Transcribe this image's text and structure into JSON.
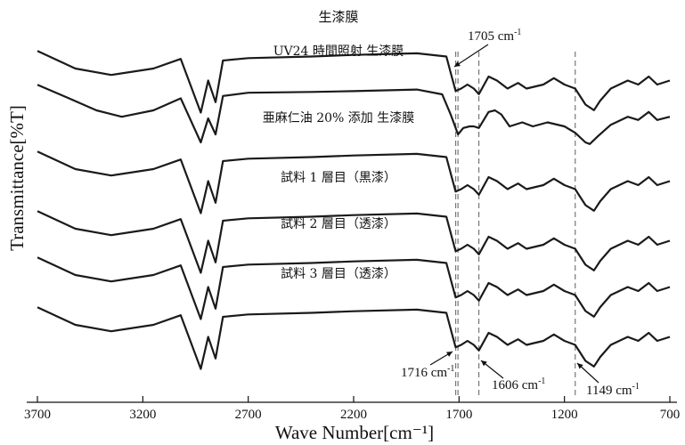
{
  "chart_data": {
    "type": "line",
    "xlabel": "Wave Number[cm⁻¹]",
    "ylabel": "Transmittance[%T]",
    "xlim": [
      3700,
      700
    ],
    "x_reversed": true,
    "xticks": [
      "3700",
      "3200",
      "2700",
      "2200",
      "1700",
      "1200",
      "700"
    ],
    "xtick_values": [
      3700,
      3200,
      2700,
      2200,
      1700,
      1200,
      700
    ],
    "y_ticks_shown": false,
    "series": [
      {
        "name": "生漆膜",
        "points": [
          [
            3700,
            8
          ],
          [
            3520,
            30
          ],
          [
            3350,
            38
          ],
          [
            3150,
            30
          ],
          [
            3020,
            18
          ],
          [
            2925,
            85
          ],
          [
            2890,
            45
          ],
          [
            2855,
            72
          ],
          [
            2820,
            20
          ],
          [
            2700,
            17
          ],
          [
            2400,
            15
          ],
          [
            2200,
            13
          ],
          [
            1900,
            11
          ],
          [
            1760,
            15
          ],
          [
            1735,
            40
          ],
          [
            1716,
            58
          ],
          [
            1690,
            55
          ],
          [
            1660,
            50
          ],
          [
            1630,
            55
          ],
          [
            1606,
            62
          ],
          [
            1560,
            40
          ],
          [
            1520,
            45
          ],
          [
            1470,
            55
          ],
          [
            1420,
            48
          ],
          [
            1380,
            55
          ],
          [
            1300,
            50
          ],
          [
            1250,
            42
          ],
          [
            1200,
            50
          ],
          [
            1149,
            55
          ],
          [
            1100,
            75
          ],
          [
            1060,
            82
          ],
          [
            1030,
            70
          ],
          [
            980,
            55
          ],
          [
            900,
            45
          ],
          [
            850,
            50
          ],
          [
            800,
            40
          ],
          [
            760,
            50
          ],
          [
            700,
            45
          ]
        ]
      },
      {
        "name": "UV24 時間照射 生漆膜",
        "points": [
          [
            3700,
            8
          ],
          [
            3550,
            25
          ],
          [
            3420,
            40
          ],
          [
            3300,
            48
          ],
          [
            3150,
            40
          ],
          [
            3020,
            25
          ],
          [
            2925,
            80
          ],
          [
            2890,
            50
          ],
          [
            2855,
            70
          ],
          [
            2820,
            22
          ],
          [
            2700,
            18
          ],
          [
            2400,
            17
          ],
          [
            2200,
            16
          ],
          [
            1900,
            14
          ],
          [
            1780,
            20
          ],
          [
            1740,
            45
          ],
          [
            1705,
            70
          ],
          [
            1680,
            62
          ],
          [
            1650,
            60
          ],
          [
            1630,
            60
          ],
          [
            1606,
            62
          ],
          [
            1560,
            42
          ],
          [
            1530,
            40
          ],
          [
            1500,
            45
          ],
          [
            1460,
            60
          ],
          [
            1400,
            55
          ],
          [
            1350,
            60
          ],
          [
            1280,
            55
          ],
          [
            1200,
            60
          ],
          [
            1149,
            68
          ],
          [
            1100,
            80
          ],
          [
            1080,
            82
          ],
          [
            1040,
            72
          ],
          [
            980,
            58
          ],
          [
            900,
            48
          ],
          [
            850,
            52
          ],
          [
            800,
            42
          ],
          [
            760,
            52
          ],
          [
            700,
            48
          ]
        ]
      },
      {
        "name": "亜麻仁油 20% 添加 生漆膜",
        "points": [
          [
            3700,
            8
          ],
          [
            3520,
            30
          ],
          [
            3350,
            38
          ],
          [
            3150,
            30
          ],
          [
            3020,
            18
          ],
          [
            2925,
            85
          ],
          [
            2890,
            45
          ],
          [
            2855,
            72
          ],
          [
            2820,
            20
          ],
          [
            2700,
            17
          ],
          [
            2400,
            15
          ],
          [
            2200,
            13
          ],
          [
            1900,
            11
          ],
          [
            1760,
            15
          ],
          [
            1735,
            40
          ],
          [
            1716,
            58
          ],
          [
            1690,
            55
          ],
          [
            1660,
            50
          ],
          [
            1630,
            55
          ],
          [
            1606,
            62
          ],
          [
            1560,
            40
          ],
          [
            1520,
            45
          ],
          [
            1470,
            55
          ],
          [
            1420,
            48
          ],
          [
            1380,
            55
          ],
          [
            1300,
            50
          ],
          [
            1250,
            42
          ],
          [
            1200,
            50
          ],
          [
            1149,
            55
          ],
          [
            1100,
            75
          ],
          [
            1060,
            82
          ],
          [
            1030,
            70
          ],
          [
            980,
            55
          ],
          [
            900,
            45
          ],
          [
            850,
            50
          ],
          [
            800,
            40
          ],
          [
            760,
            50
          ],
          [
            700,
            45
          ]
        ]
      },
      {
        "name": "試料 1 層目（黒漆）",
        "points": [
          [
            3700,
            8
          ],
          [
            3520,
            30
          ],
          [
            3350,
            38
          ],
          [
            3150,
            30
          ],
          [
            3020,
            18
          ],
          [
            2925,
            85
          ],
          [
            2890,
            45
          ],
          [
            2855,
            72
          ],
          [
            2820,
            20
          ],
          [
            2700,
            17
          ],
          [
            2400,
            15
          ],
          [
            2200,
            13
          ],
          [
            1900,
            11
          ],
          [
            1760,
            15
          ],
          [
            1735,
            40
          ],
          [
            1716,
            58
          ],
          [
            1690,
            55
          ],
          [
            1660,
            50
          ],
          [
            1630,
            55
          ],
          [
            1606,
            62
          ],
          [
            1560,
            40
          ],
          [
            1520,
            45
          ],
          [
            1470,
            55
          ],
          [
            1420,
            48
          ],
          [
            1380,
            55
          ],
          [
            1300,
            50
          ],
          [
            1250,
            42
          ],
          [
            1200,
            50
          ],
          [
            1149,
            55
          ],
          [
            1100,
            75
          ],
          [
            1060,
            82
          ],
          [
            1030,
            70
          ],
          [
            980,
            55
          ],
          [
            900,
            45
          ],
          [
            850,
            50
          ],
          [
            800,
            40
          ],
          [
            760,
            50
          ],
          [
            700,
            45
          ]
        ]
      },
      {
        "name": "試料 2 層目（透漆）",
        "points": [
          [
            3700,
            8
          ],
          [
            3520,
            30
          ],
          [
            3350,
            38
          ],
          [
            3150,
            30
          ],
          [
            3020,
            18
          ],
          [
            2925,
            85
          ],
          [
            2890,
            45
          ],
          [
            2855,
            72
          ],
          [
            2820,
            20
          ],
          [
            2700,
            17
          ],
          [
            2400,
            15
          ],
          [
            2200,
            13
          ],
          [
            1900,
            11
          ],
          [
            1760,
            15
          ],
          [
            1735,
            40
          ],
          [
            1716,
            58
          ],
          [
            1690,
            55
          ],
          [
            1660,
            50
          ],
          [
            1630,
            55
          ],
          [
            1606,
            62
          ],
          [
            1560,
            40
          ],
          [
            1520,
            45
          ],
          [
            1470,
            55
          ],
          [
            1420,
            48
          ],
          [
            1380,
            55
          ],
          [
            1300,
            50
          ],
          [
            1250,
            42
          ],
          [
            1200,
            50
          ],
          [
            1149,
            55
          ],
          [
            1100,
            75
          ],
          [
            1060,
            82
          ],
          [
            1030,
            70
          ],
          [
            980,
            55
          ],
          [
            900,
            45
          ],
          [
            850,
            50
          ],
          [
            800,
            40
          ],
          [
            760,
            50
          ],
          [
            700,
            45
          ]
        ]
      },
      {
        "name": "試料 3 層目（透漆）",
        "points": [
          [
            3700,
            8
          ],
          [
            3520,
            30
          ],
          [
            3350,
            38
          ],
          [
            3150,
            30
          ],
          [
            3020,
            18
          ],
          [
            2925,
            85
          ],
          [
            2890,
            45
          ],
          [
            2855,
            72
          ],
          [
            2820,
            20
          ],
          [
            2700,
            17
          ],
          [
            2400,
            15
          ],
          [
            2200,
            13
          ],
          [
            1900,
            11
          ],
          [
            1760,
            15
          ],
          [
            1735,
            40
          ],
          [
            1716,
            58
          ],
          [
            1690,
            55
          ],
          [
            1660,
            50
          ],
          [
            1630,
            55
          ],
          [
            1606,
            62
          ],
          [
            1560,
            40
          ],
          [
            1520,
            45
          ],
          [
            1470,
            55
          ],
          [
            1420,
            48
          ],
          [
            1380,
            55
          ],
          [
            1300,
            50
          ],
          [
            1250,
            42
          ],
          [
            1200,
            50
          ],
          [
            1149,
            55
          ],
          [
            1100,
            75
          ],
          [
            1060,
            82
          ],
          [
            1030,
            70
          ],
          [
            980,
            55
          ],
          [
            900,
            45
          ],
          [
            850,
            50
          ],
          [
            800,
            40
          ],
          [
            760,
            50
          ],
          [
            700,
            45
          ]
        ]
      }
    ],
    "reference_lines": [
      1716,
      1705,
      1606,
      1149
    ],
    "annotations": [
      {
        "text": "1705 cm",
        "sup": "-1",
        "wavenumber": 1705
      },
      {
        "text": "1716 cm",
        "sup": "-1",
        "wavenumber": 1716
      },
      {
        "text": "1606 cm",
        "sup": "-1",
        "wavenumber": 1606
      },
      {
        "text": "1149 cm",
        "sup": "-1",
        "wavenumber": 1149
      }
    ],
    "grid": false,
    "legend": "inline labels above each spectrum"
  }
}
